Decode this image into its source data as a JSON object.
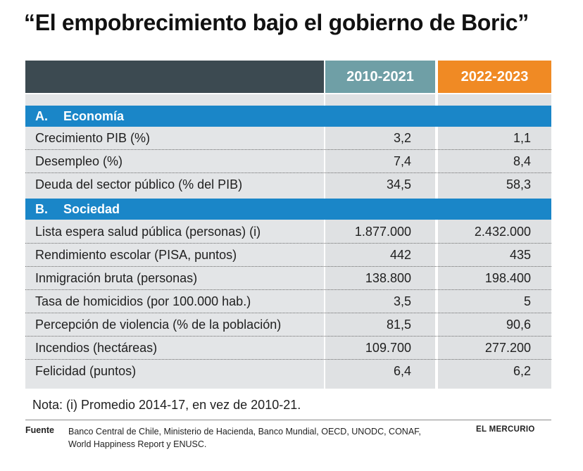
{
  "title": "“El empobrecimiento bajo el gobierno de Boric”",
  "columns": {
    "period_1": "2010-2021",
    "period_2": "2022-2023"
  },
  "sections": [
    {
      "letter": "A.",
      "name": "Economía",
      "rows": [
        {
          "label": "Crecimiento PIB (%)",
          "v1": "3,2",
          "v2": "1,1"
        },
        {
          "label": "Desempleo (%)",
          "v1": "7,4",
          "v2": "8,4"
        },
        {
          "label": "Deuda del sector público (% del PIB)",
          "v1": "34,5",
          "v2": "58,3"
        }
      ]
    },
    {
      "letter": "B.",
      "name": "Sociedad",
      "rows": [
        {
          "label": "Lista espera salud pública (personas) (i)",
          "v1": "1.877.000",
          "v2": "2.432.000"
        },
        {
          "label": "Rendimiento escolar (PISA, puntos)",
          "v1": "442",
          "v2": "435"
        },
        {
          "label": "Inmigración bruta (personas)",
          "v1": "138.800",
          "v2": "198.400"
        },
        {
          "label": "Tasa de homicidios (por 100.000 hab.)",
          "v1": "3,5",
          "v2": "5"
        },
        {
          "label": "Percepción de violencia (% de la población)",
          "v1": "81,5",
          "v2": "90,6"
        },
        {
          "label": "Incendios (hectáreas)",
          "v1": "109.700",
          "v2": "277.200"
        },
        {
          "label": "Felicidad (puntos)",
          "v1": "6,4",
          "v2": "6,2"
        }
      ]
    }
  ],
  "note": "Nota: (i) Promedio 2014-17, en vez de 2010-21.",
  "source": {
    "label": "Fuente",
    "text": "Banco Central de Chile, Ministerio de Hacienda, Banco Mundial, OECD, UNODC, CONAF, World Happiness Report y ENUSC."
  },
  "brand": "EL MERCURIO",
  "colors": {
    "header_dark": "#3c4a51",
    "header_teal": "#6f9fa6",
    "header_orange": "#f08a24",
    "section_blue": "#1a86c8",
    "cell_gray": "#dfe1e3"
  }
}
